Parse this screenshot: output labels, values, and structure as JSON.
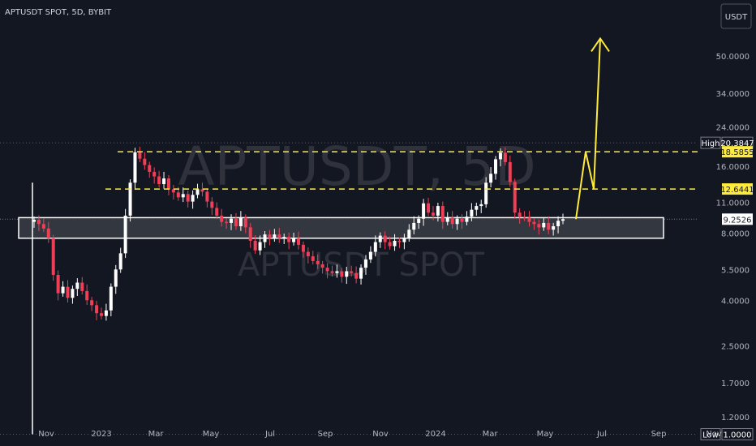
{
  "header": {
    "symbol_line": "APTUSDT SPOT, 5D, BYBIT",
    "currency_badge": "USDT"
  },
  "watermark": {
    "main": "APTUSDT, 5D",
    "sub": "APTUSDT SPOT"
  },
  "colors": {
    "background": "#131722",
    "up": "#ffffff",
    "down": "#ef3f56",
    "level_line": "#ffeb3b",
    "projection_arrow": "#ffeb3b",
    "zone_fill": "#3a3d45",
    "zone_border": "#ffffff"
  },
  "chart_data": {
    "type": "candlestick",
    "symbol": "APTUSDT",
    "timeframe": "5D",
    "exchange": "BYBIT",
    "y_scale": "log",
    "ylim": [
      1.0,
      60
    ],
    "y_ticks": [
      50.0,
      34.0,
      24.0,
      16.0,
      11.0,
      8.0,
      5.5,
      4.0,
      2.5,
      1.7,
      1.2
    ],
    "x_ticks": [
      "Nov",
      "2023",
      "Mar",
      "May",
      "Jul",
      "Sep",
      "Nov",
      "2024",
      "Mar",
      "May",
      "Jul",
      "Sep",
      "Nov"
    ],
    "price_labels": [
      {
        "name": "High",
        "value": "20.3847"
      },
      {
        "name": "",
        "value": "18.5855"
      },
      {
        "name": "",
        "value": "12.6441"
      },
      {
        "name": "",
        "value": "9.2526"
      },
      {
        "name": "Low",
        "value": "1.0000"
      }
    ],
    "levels": [
      18.5855,
      12.6441
    ],
    "support_zone": [
      7.6,
      9.4
    ],
    "last_price": 9.2526,
    "all_time_high": 20.3847,
    "all_time_low": 1.0,
    "projection": [
      9.2526,
      18.5855,
      12.6441,
      60
    ],
    "closes": [
      9.2,
      8.8,
      8.4,
      7.6,
      5.2,
      4.3,
      4.6,
      4.1,
      4.5,
      4.8,
      4.4,
      4.0,
      3.8,
      3.5,
      3.4,
      3.6,
      4.6,
      5.5,
      6.5,
      9.6,
      13.5,
      18.5,
      17.3,
      16.2,
      15.1,
      14.4,
      13.3,
      14.1,
      12.6,
      12.2,
      11.6,
      12.0,
      11.1,
      11.9,
      12.6,
      12.3,
      11.1,
      10.4,
      9.6,
      9.0,
      8.9,
      9.3,
      8.6,
      9.4,
      8.5,
      7.4,
      6.7,
      7.3,
      7.9,
      7.6,
      7.9,
      7.6,
      7.7,
      7.3,
      7.6,
      7.1,
      6.6,
      6.3,
      6.0,
      5.8,
      5.6,
      5.4,
      5.3,
      5.4,
      5.1,
      5.4,
      5.3,
      5.0,
      5.6,
      6.1,
      6.6,
      7.3,
      7.8,
      7.3,
      7.0,
      7.4,
      7.3,
      7.6,
      8.3,
      8.9,
      9.3,
      10.9,
      9.9,
      9.6,
      10.6,
      9.0,
      9.4,
      8.8,
      9.3,
      9.0,
      9.5,
      10.2,
      10.6,
      10.8,
      13.5,
      14.8,
      17.2,
      18.4,
      16.7,
      13.6,
      9.9,
      9.5,
      9.4,
      9.0,
      8.8,
      8.5,
      8.9,
      8.3,
      8.6,
      9.1,
      9.2526
    ]
  }
}
